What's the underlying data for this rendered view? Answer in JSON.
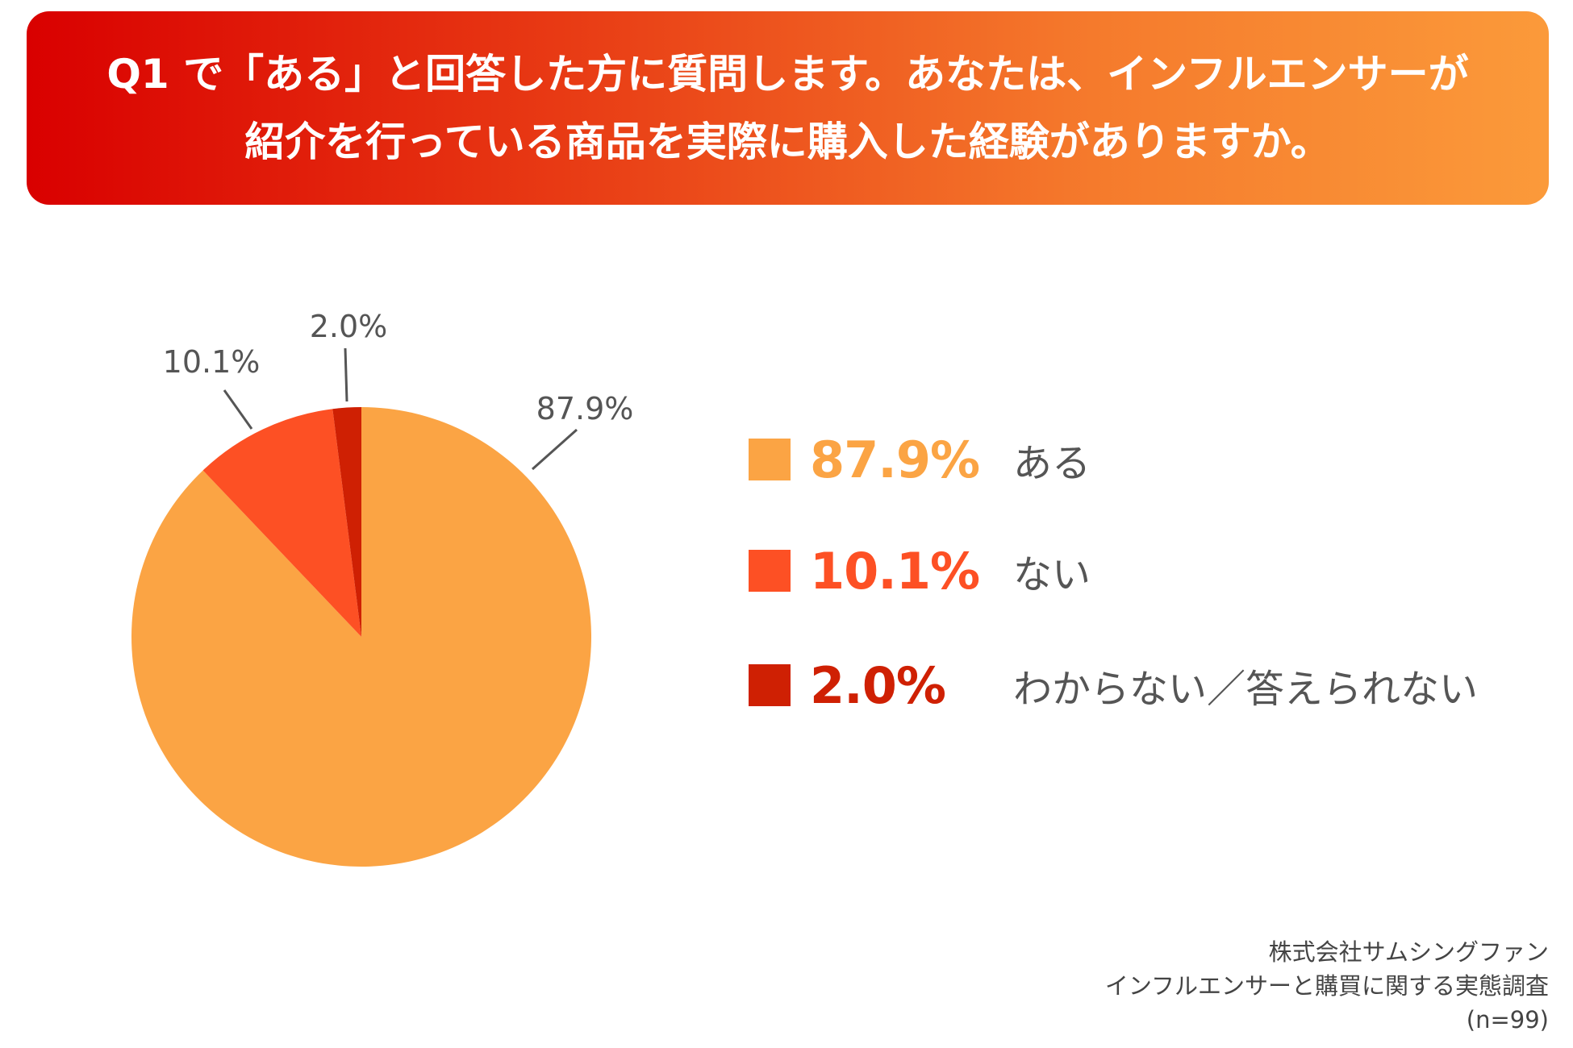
{
  "header": {
    "line1": "Q1 で「ある」と回答した方に質問します。あなたは、インフルエンサーが",
    "line2": "紹介を行っている商品を実際に購入した経験がありますか。"
  },
  "chart_data": {
    "type": "pie",
    "title": "Q1 で「ある」と回答した方に質問します。あなたは、インフルエンサーが紹介を行っている商品を実際に購入した経験がありますか。",
    "slices": [
      {
        "label": "ある",
        "value": 87.9,
        "display": "87.9%",
        "color": "#fba444"
      },
      {
        "label": "ない",
        "value": 10.1,
        "display": "10.1%",
        "color": "#fd5024"
      },
      {
        "label": "わからない／答えられない",
        "value": 2.0,
        "display": "2.0%",
        "color": "#cf2003"
      }
    ],
    "start_angle": "12 o'clock",
    "direction": "clockwise",
    "legend_position": "right"
  },
  "source": {
    "line1": "株式会社サムシングファン",
    "line2": "インフルエンサーと購買に関する実態調査",
    "line3": "(n=99)"
  },
  "colors": {
    "banner_start": "#d90000",
    "banner_end": "#fb9a3a",
    "label_text": "#555555"
  }
}
